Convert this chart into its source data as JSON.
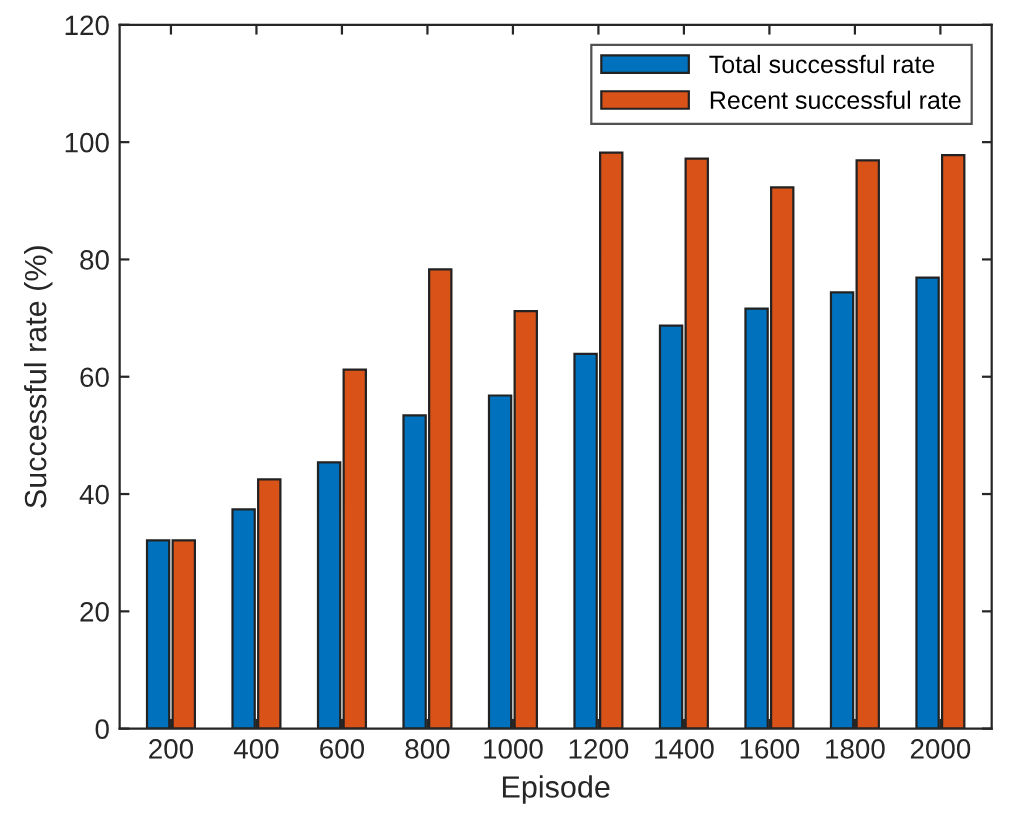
{
  "chart_data": {
    "type": "bar",
    "xlabel": "Episode",
    "ylabel": "Successful rate (%)",
    "categories": [
      "200",
      "400",
      "600",
      "800",
      "1000",
      "1200",
      "1400",
      "1600",
      "1800",
      "2000"
    ],
    "series": [
      {
        "name": "Total successful rate",
        "color": "#0072bd",
        "values": [
          32.1,
          37.4,
          45.4,
          53.4,
          56.8,
          63.9,
          68.7,
          71.6,
          74.4,
          76.9
        ]
      },
      {
        "name": "Recent successful rate",
        "color": "#d95319",
        "values": [
          32.1,
          42.5,
          61.2,
          78.3,
          71.2,
          98.2,
          97.2,
          92.3,
          96.9,
          97.8
        ]
      }
    ],
    "ylim": [
      0,
      120
    ],
    "yticks": [
      0,
      20,
      40,
      60,
      80,
      100,
      120
    ],
    "grid": false,
    "legend": "top right"
  }
}
